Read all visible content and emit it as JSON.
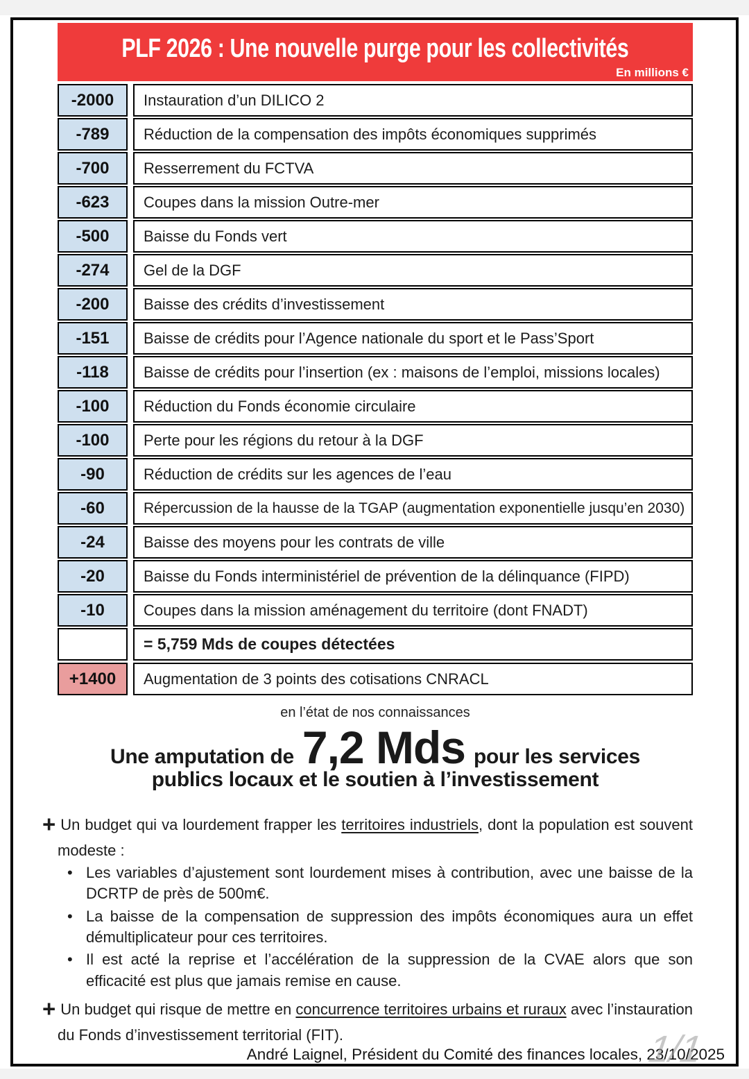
{
  "colors": {
    "red": "#ef3b3b",
    "blue": "#cfe0ef",
    "pink": "#e99d9d"
  },
  "markers": {
    "plus": "+",
    "bullet": "•"
  },
  "header": {
    "title": "PLF 2026 : Une nouvelle purge pour les collectivités",
    "unit_note": "En millions €"
  },
  "table": {
    "rows": [
      {
        "value": "-2000",
        "label": "Instauration d’un DILICO 2"
      },
      {
        "value": "-789",
        "label": "Réduction de la compensation des impôts économiques supprimés"
      },
      {
        "value": "-700",
        "label": "Resserrement du FCTVA"
      },
      {
        "value": "-623",
        "label": "Coupes dans la mission Outre-mer"
      },
      {
        "value": "-500",
        "label": "Baisse du Fonds vert"
      },
      {
        "value": "-274",
        "label": "Gel de la DGF"
      },
      {
        "value": "-200",
        "label": "Baisse des crédits d’investissement"
      },
      {
        "value": "-151",
        "label": "Baisse de crédits pour l’Agence nationale du sport et le Pass’Sport"
      },
      {
        "value": "-118",
        "label": "Baisse de crédits pour l’insertion (ex : maisons de l’emploi, missions locales)"
      },
      {
        "value": "-100",
        "label": "Réduction du Fonds économie circulaire"
      },
      {
        "value": "-100",
        "label": "Perte pour les régions du retour à la DGF"
      },
      {
        "value": "-90",
        "label": "Réduction de crédits sur les agences de l’eau"
      },
      {
        "value": "-60",
        "label": "Répercussion de la hausse de la TGAP (augmentation exponentielle jusqu’en 2030)"
      },
      {
        "value": "-24",
        "label": "Baisse des moyens pour les contrats de ville"
      },
      {
        "value": "-20",
        "label": "Baisse du Fonds interministériel de prévention de la délinquance (FIPD)"
      },
      {
        "value": "-10",
        "label": "Coupes dans la mission aménagement du territoire (dont FNADT)"
      }
    ],
    "summary": {
      "value": "",
      "label": "= 5,759 Mds de coupes détectées"
    },
    "increase": {
      "value": "+1400",
      "label": "Augmentation de 3 points des cotisations CNRACL"
    }
  },
  "caption": "en l’état de nos connaissances",
  "headline": {
    "prefix": "Une amputation de",
    "amount": "7,2 Mds",
    "suffix": "pour les services",
    "line2": "publics locaux et le soutien à l’investissement"
  },
  "notes": [
    {
      "type": "plus",
      "segments": [
        {
          "text": "Un budget qui va lourdement frapper les "
        },
        {
          "text": "territoires industriels",
          "underline": true
        },
        {
          "text": ", dont la population est souvent modeste :"
        }
      ]
    },
    {
      "type": "bullet",
      "segments": [
        {
          "text": "Les variables d’ajustement sont lourdement mises à contribution, avec une baisse de la DCRTP de près de 500m€."
        }
      ]
    },
    {
      "type": "bullet",
      "segments": [
        {
          "text": "La baisse de la compensation de suppression des impôts économiques aura un effet démultiplicateur pour ces territoires."
        }
      ]
    },
    {
      "type": "bullet",
      "segments": [
        {
          "text": "Il est acté la reprise et l’accélération de la suppression de la CVAE alors que son efficacité est plus que jamais remise en cause."
        }
      ]
    },
    {
      "type": "plus",
      "segments": [
        {
          "text": "Un budget qui risque de mettre en "
        },
        {
          "text": "concurrence territoires urbains et ruraux",
          "underline": true
        },
        {
          "text": " avec l’instauration du Fonds d’investissement territorial (FIT)."
        }
      ]
    }
  ],
  "footer": {
    "credit": "André Laignel, Président du Comité des finances locales, 23/10/2025",
    "page_indicator": "1/1"
  }
}
